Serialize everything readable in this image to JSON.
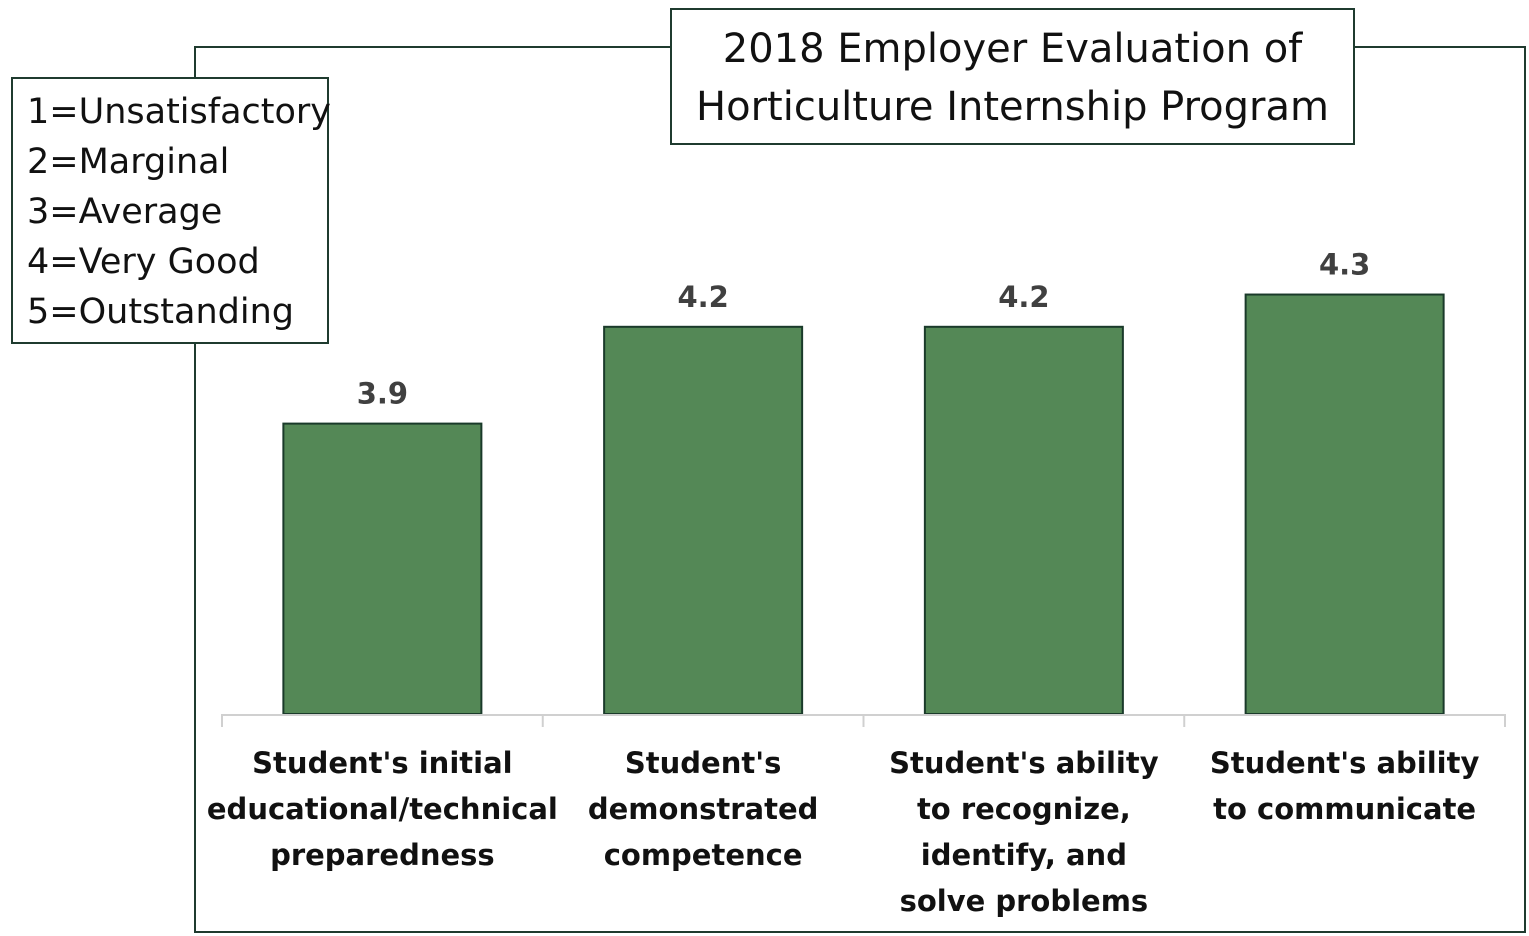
{
  "chart_data": {
    "type": "bar",
    "title": "2018 Employer Evaluation of Horticulture Internship Program",
    "title_lines": [
      "2018 Employer Evaluation of",
      "Horticulture Internship Program"
    ],
    "categories": [
      "Student's initial educational/technical preparedness",
      "Student's demonstrated competence",
      "Student's ability to recognize, identify, and solve problems",
      "Student's ability to communicate"
    ],
    "category_lines": [
      [
        "Student's initial",
        "educational/technical",
        "preparedness"
      ],
      [
        "Student's",
        "demonstrated",
        "competence"
      ],
      [
        "Student's ability",
        "to recognize,",
        "identify, and",
        "solve problems"
      ],
      [
        "Student's ability",
        "to communicate"
      ]
    ],
    "values": [
      3.9,
      4.2,
      4.2,
      4.3
    ],
    "data_labels": [
      "3.9",
      "4.2",
      "4.2",
      "4.3"
    ],
    "ylim": [
      3,
      4.5
    ],
    "xlabel": "",
    "ylabel": "",
    "grid": false,
    "legend_placement": "top-left",
    "scale_key": [
      "1=Unsatisfactory",
      "2=Marginal",
      "3=Average",
      "4=Very Good",
      "5=Outstanding"
    ],
    "colors": {
      "bar": "#548856",
      "bar_edge": "#1a3a2a",
      "frame": "#1f3b2f",
      "label": "#404040",
      "axis": "#d0d0d0"
    }
  }
}
